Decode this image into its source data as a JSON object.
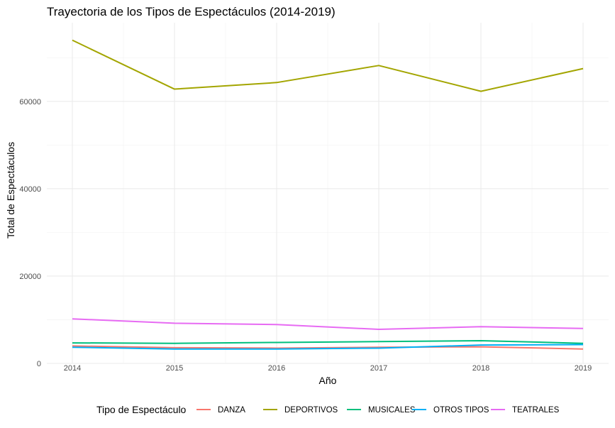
{
  "chart_data": {
    "type": "line",
    "title": "Trayectoria de los Tipos de Espectáculos (2014-2019)",
    "xlabel": "Año",
    "ylabel": "Total de Espectáculos",
    "x": [
      2014,
      2015,
      2016,
      2017,
      2018,
      2019
    ],
    "xlim": [
      2013.75,
      2019.25
    ],
    "ylim": [
      0,
      78000
    ],
    "yticks": [
      0,
      20000,
      40000,
      60000
    ],
    "ytick_labels": [
      "0",
      "20000",
      "40000",
      "60000"
    ],
    "xtick_labels": [
      "2014",
      "2015",
      "2016",
      "2017",
      "2018",
      "2019"
    ],
    "grid": true,
    "legend": {
      "title": "Tipo de Espectáculo",
      "position": "bottom"
    },
    "series": [
      {
        "name": "DANZA",
        "color": "#F8766D",
        "values": [
          4000,
          3600,
          3500,
          3700,
          3800,
          3300
        ]
      },
      {
        "name": "DEPORTIVOS",
        "color": "#A3A500",
        "values": [
          74000,
          62800,
          64300,
          68200,
          62300,
          67500
        ]
      },
      {
        "name": "MUSICALES",
        "color": "#00BF7D",
        "values": [
          4700,
          4600,
          4800,
          5000,
          5200,
          4600
        ]
      },
      {
        "name": "OTROS TIPOS",
        "color": "#00B0F6",
        "values": [
          3700,
          3300,
          3300,
          3500,
          4200,
          4300
        ]
      },
      {
        "name": "TEATRALES",
        "color": "#E76BF3",
        "values": [
          10200,
          9200,
          8900,
          7800,
          8400,
          8000
        ]
      }
    ]
  }
}
